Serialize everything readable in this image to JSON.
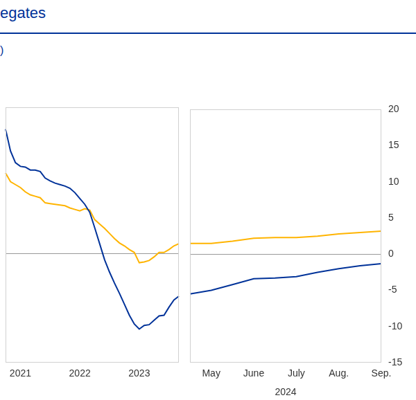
{
  "chart_data": [
    {
      "type": "line",
      "title": "egates",
      "subtitle": ")",
      "categories": [
        null,
        null,
        null,
        "2021",
        null,
        null,
        null,
        null,
        null,
        null,
        null,
        null,
        null,
        null,
        null,
        "2022",
        null,
        null,
        null,
        null,
        null,
        null,
        null,
        null,
        null,
        null,
        null,
        "2023",
        null,
        null,
        null,
        null,
        null,
        null,
        null,
        null
      ],
      "series": [
        {
          "color": "#003299",
          "values": [
            17,
            14,
            12.4,
            11.9,
            11.8,
            11.4,
            11.4,
            11.2,
            10.3,
            9.9,
            9.6,
            9.4,
            9.2,
            8.9,
            8.3,
            7.5,
            6.7,
            5.6,
            3.5,
            1.3,
            -0.9,
            -2.6,
            -4.1,
            -5.5,
            -7.0,
            -8.5,
            -9.7,
            -10.4,
            -9.9,
            -9.8,
            -9.2,
            -8.6,
            -8.5,
            -7.4,
            -6.4,
            -5.9
          ]
        },
        {
          "color": "#ffb400",
          "values": [
            11,
            9.8,
            9.4,
            9.0,
            8.4,
            8.0,
            7.8,
            7.6,
            6.9,
            6.8,
            6.7,
            6.6,
            6.5,
            6.2,
            6.0,
            5.8,
            6.1,
            5.9,
            4.6,
            4.0,
            3.4,
            2.7,
            2.0,
            1.4,
            1.0,
            0.5,
            0.1,
            -1.3,
            -1.2,
            -1.0,
            -0.5,
            0.1,
            0.1,
            0.5,
            1.0,
            1.3
          ]
        }
      ],
      "ylim": [
        -15,
        20
      ],
      "grid": false,
      "tick_labels": "x"
    },
    {
      "type": "line",
      "categories": [
        null,
        "May",
        null,
        "June",
        null,
        "July",
        null,
        "Aug.",
        null,
        "Sep."
      ],
      "xlabel": "2024",
      "series": [
        {
          "color": "#003299",
          "values": [
            -5.5,
            -5.0,
            -4.2,
            -3.4,
            -3.3,
            -3.1,
            -2.5,
            -2.0,
            -1.6,
            -1.3
          ]
        },
        {
          "color": "#ffb400",
          "values": [
            1.5,
            1.5,
            1.8,
            2.2,
            2.3,
            2.3,
            2.5,
            2.8,
            3.0,
            3.2
          ]
        }
      ],
      "ylim": [
        -15,
        20
      ],
      "yticks": [
        -15,
        -10,
        -5,
        0,
        5,
        10,
        15,
        20
      ],
      "grid": false
    }
  ]
}
